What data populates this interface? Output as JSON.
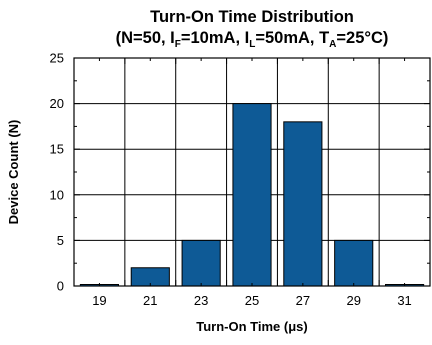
{
  "chart_data": {
    "type": "bar",
    "title_line1": "Turn-On Time Distribution",
    "title_line2": {
      "t1": "(N=50, I",
      "s1": "F",
      "t2": "=10mA, I",
      "s2": "L",
      "t3": "=50mA, T",
      "s3": "A",
      "t4": "=25°C)"
    },
    "xlabel": "Turn-On Time (μs)",
    "ylabel": "Device Count (N)",
    "x": [
      19,
      21,
      23,
      25,
      27,
      29,
      31
    ],
    "x_ticks": [
      "19",
      "21",
      "23",
      "25",
      "27",
      "29",
      "31"
    ],
    "values": [
      0,
      2,
      5,
      20,
      18,
      5,
      0
    ],
    "xlim": [
      18,
      32
    ],
    "ylim": [
      0,
      25
    ],
    "y_ticks": [
      "0",
      "5",
      "10",
      "15",
      "20",
      "25"
    ],
    "grid": true,
    "bar_color": "#0e5a96"
  }
}
